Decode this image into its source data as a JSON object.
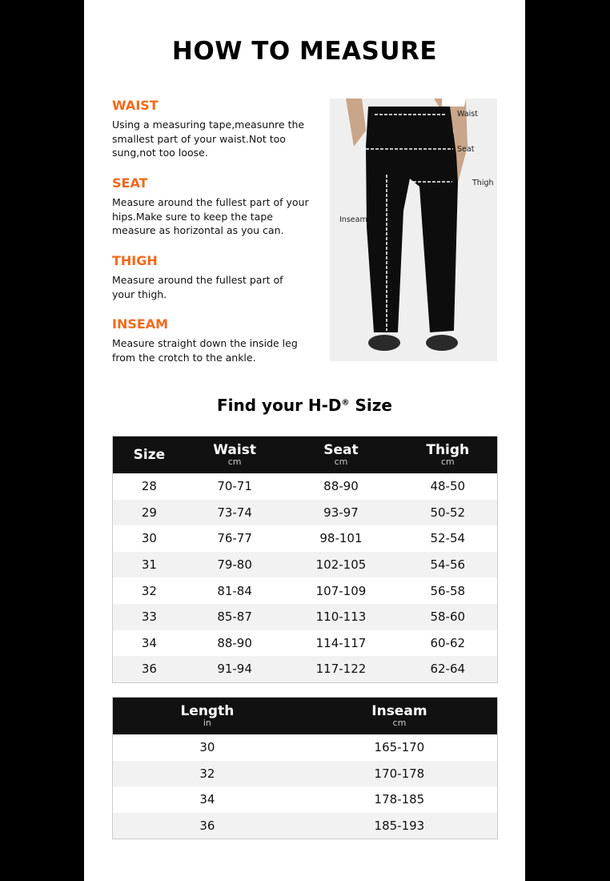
{
  "title": "HOW TO MEASURE",
  "sections": [
    {
      "heading": "WAIST",
      "text": "Using a measuring tape,measunre the\nsmallest part of your waist.Not too\nsung,not too loose."
    },
    {
      "heading": "SEAT",
      "text": "Measure around the fullest part of your\n hips.Make sure to keep the tape\nmeasure as horizontal as you can."
    },
    {
      "heading": "THIGH",
      "text": "Measure around the fullest part of\nyour thigh."
    },
    {
      "heading": "INSEAM",
      "text": "Measure straight down the inside leg\nfrom the crotch to the ankle."
    }
  ],
  "photo_labels": {
    "waist": "Waist",
    "seat": "Seat",
    "thigh": "Thigh",
    "inseam": "Inseam"
  },
  "size_title": {
    "text": "Find your H-D",
    "mark": "®",
    "suffix": " Size"
  },
  "size_table": {
    "headers": [
      {
        "label": "Size",
        "unit": ""
      },
      {
        "label": "Waist",
        "unit": "cm"
      },
      {
        "label": "Seat",
        "unit": "cm"
      },
      {
        "label": "Thigh",
        "unit": "cm"
      }
    ],
    "rows": [
      [
        "28",
        "70-71",
        "88-90",
        "48-50"
      ],
      [
        "29",
        "73-74",
        "93-97",
        "50-52"
      ],
      [
        "30",
        "76-77",
        "98-101",
        "52-54"
      ],
      [
        "31",
        "79-80",
        "102-105",
        "54-56"
      ],
      [
        "32",
        "81-84",
        "107-109",
        "56-58"
      ],
      [
        "33",
        "85-87",
        "110-113",
        "58-60"
      ],
      [
        "34",
        "88-90",
        "114-117",
        "60-62"
      ],
      [
        "36",
        "91-94",
        "117-122",
        "62-64"
      ]
    ]
  },
  "length_table": {
    "headers": [
      {
        "label": "Length",
        "unit": "in"
      },
      {
        "label": "Inseam",
        "unit": "cm"
      }
    ],
    "rows": [
      [
        "30",
        "165-170"
      ],
      [
        "32",
        "170-178"
      ],
      [
        "34",
        "178-185"
      ],
      [
        "36",
        "185-193"
      ]
    ]
  },
  "colors": {
    "accent": "#f26a1b",
    "header_bg": "#111111",
    "alt_row": "#f2f2f2"
  }
}
